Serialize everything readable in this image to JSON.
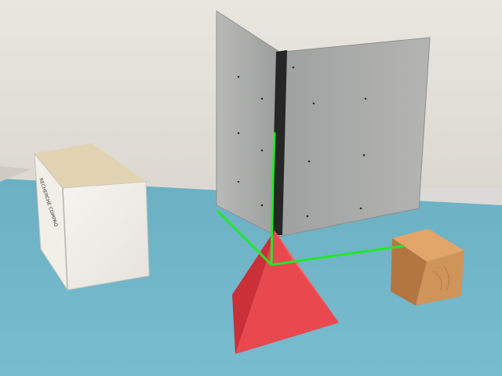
{
  "scene": {
    "subject": "photo of geometric objects on a table with a hinged metal calibration panel",
    "colors": {
      "wall": "#e6e3dd",
      "table": "#6fb3c7",
      "metal_panel": "#a8aaa9",
      "hinge": "#2a2a2a",
      "pyramid": "#e5434e",
      "wood_cube": "#c98a4f",
      "white_box": "#f4f2ee",
      "axis_lines": "#2ee52e"
    },
    "objects": [
      "white-cardboard-box",
      "hinged-metal-panel",
      "red-pyramid",
      "wooden-cube",
      "green-coordinate-axes"
    ],
    "box_label_text": "RECHERCHE COMPAQ"
  }
}
